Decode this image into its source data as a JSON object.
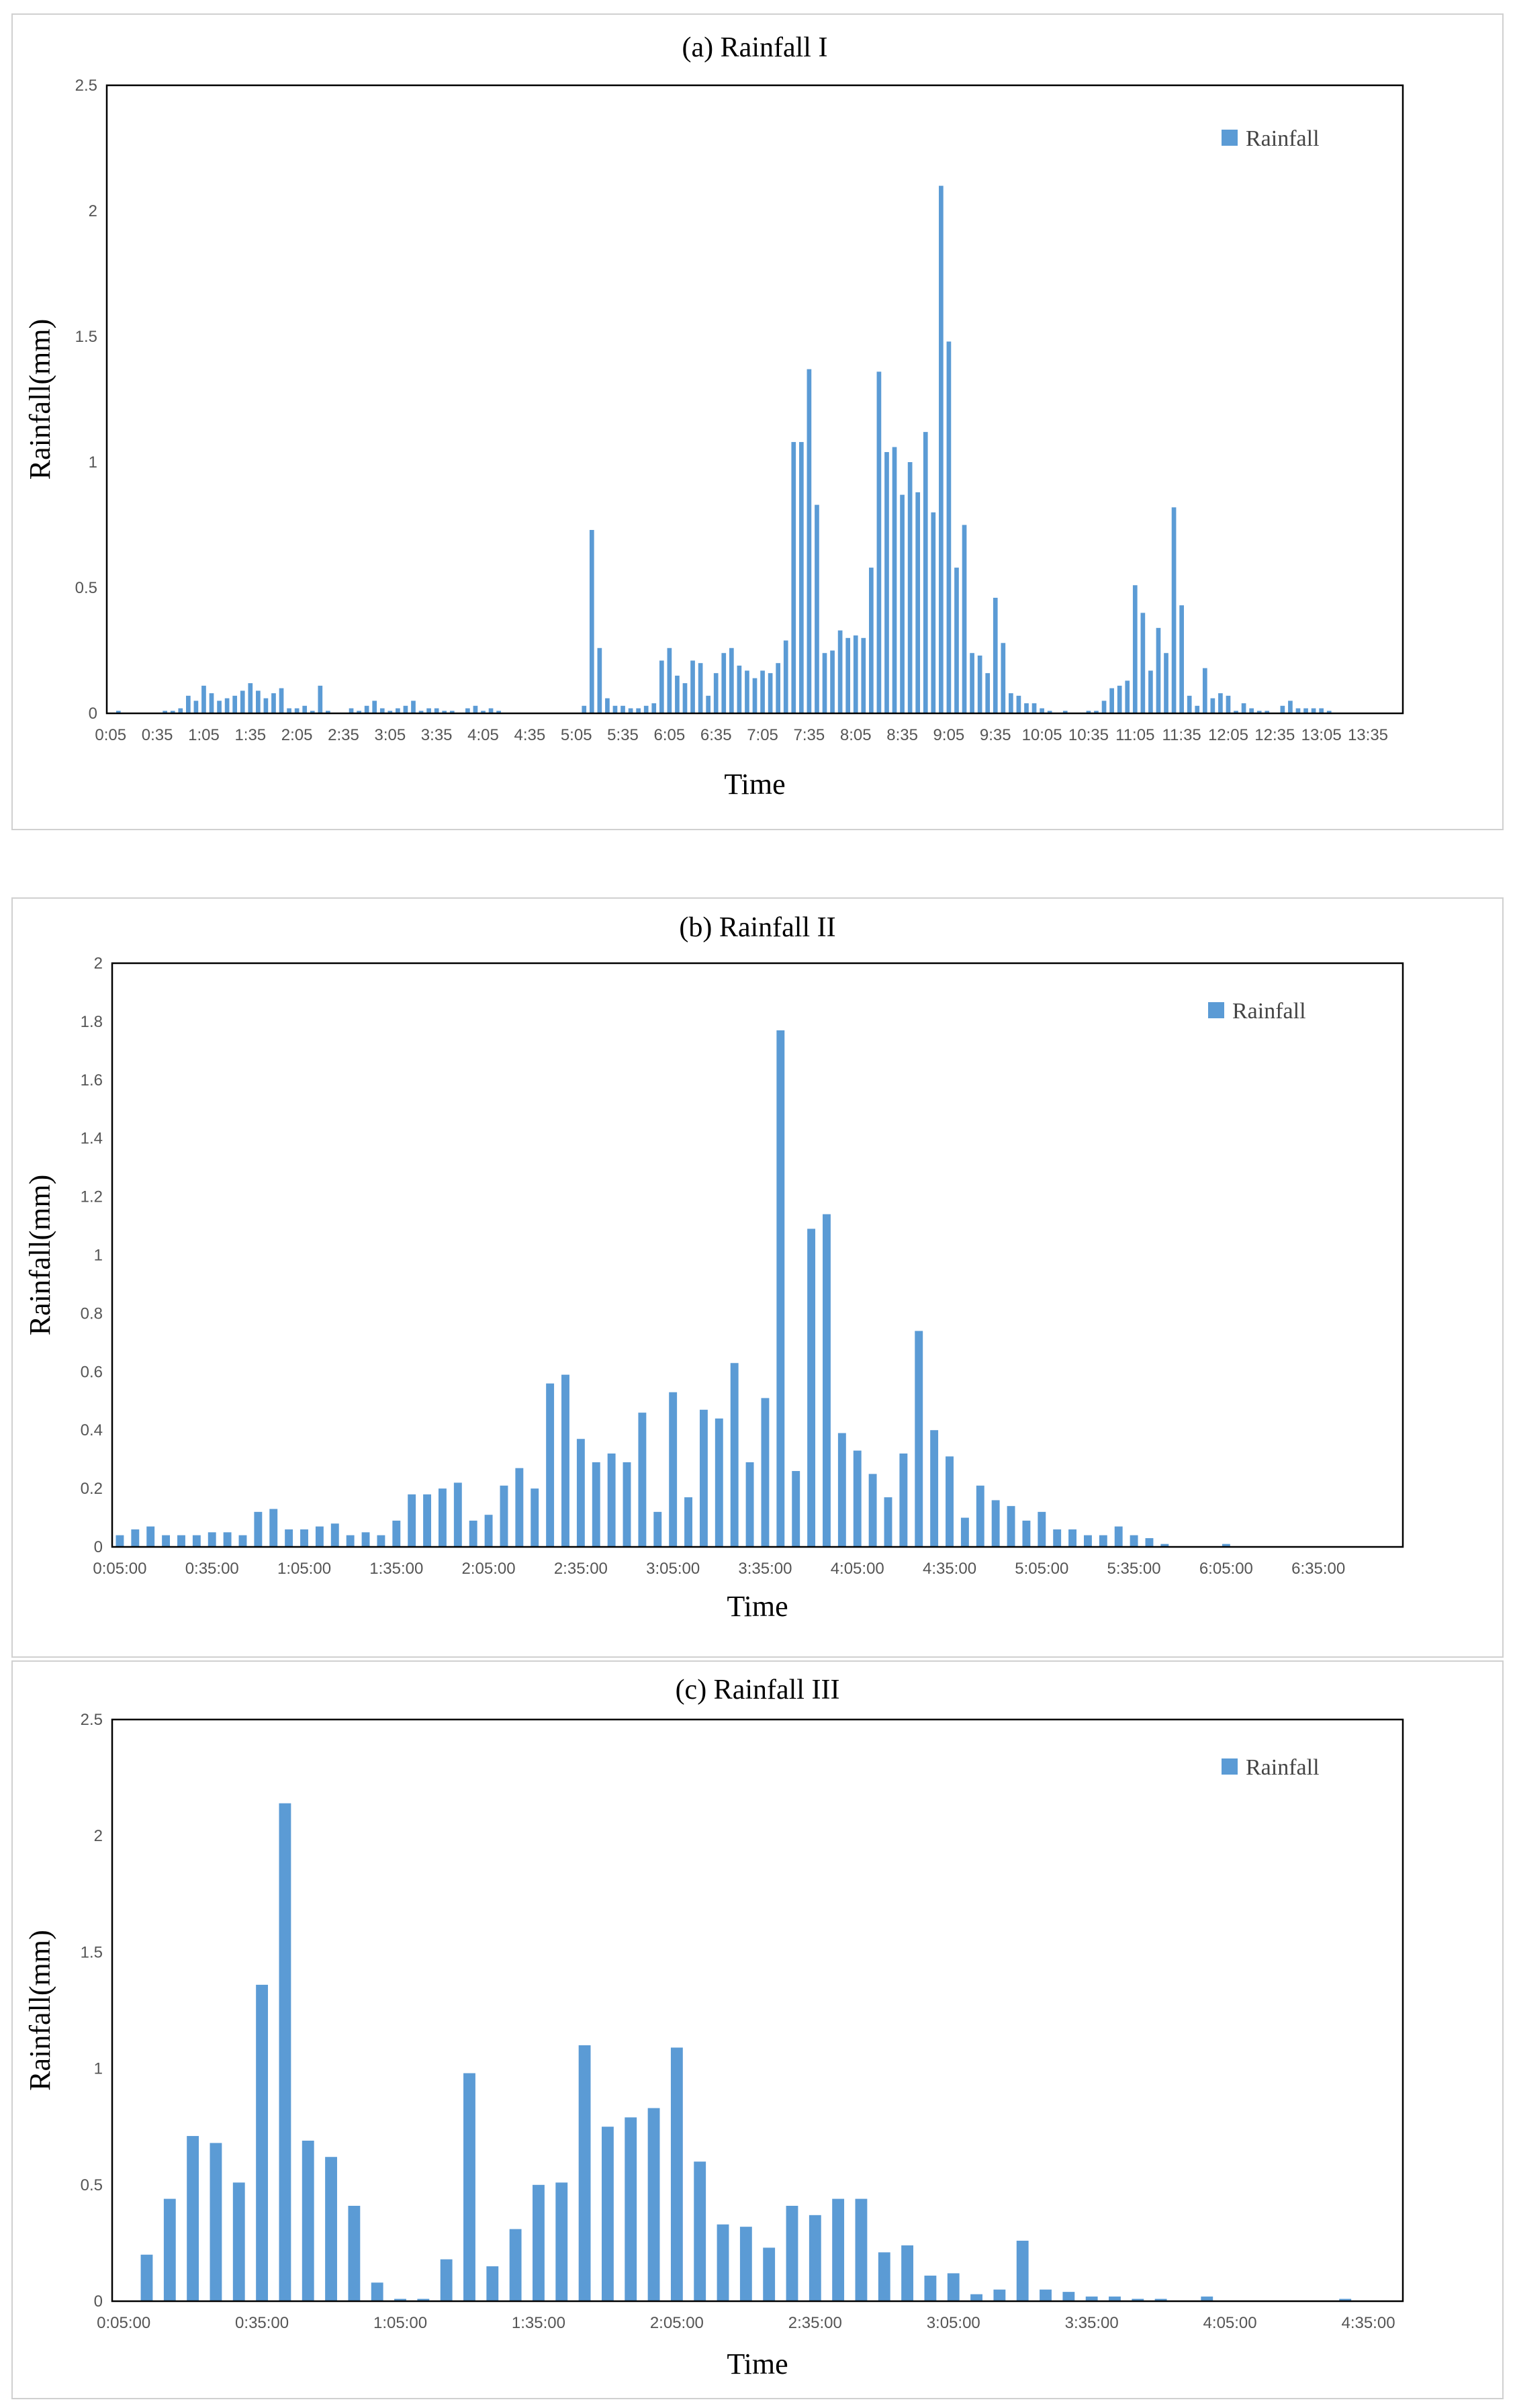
{
  "chart_data": [
    {
      "type": "bar",
      "title": "(a) Rainfall I",
      "xlabel": "Time",
      "ylabel": "Rainfall(mm)",
      "ylim": [
        0,
        2.5
      ],
      "yticks": [
        "0",
        "0.5",
        "1",
        "1.5",
        "2",
        "2.5"
      ],
      "legend": "Rainfall",
      "legend_position": "top-right",
      "bar_color": "#5b9bd5",
      "xtick_labels": [
        "0:05",
        "0:35",
        "1:05",
        "1:35",
        "2:05",
        "2:35",
        "3:05",
        "3:35",
        "4:05",
        "4:35",
        "5:05",
        "5:35",
        "6:05",
        "6:35",
        "7:05",
        "7:35",
        "8:05",
        "8:35",
        "9:05",
        "9:35",
        "10:05",
        "10:35",
        "11:05",
        "11:35",
        "12:05",
        "12:35",
        "13:05",
        "13:35"
      ],
      "xtick_step": 6,
      "values": [
        0,
        0.01,
        0,
        0,
        0,
        0,
        0,
        0.01,
        0.01,
        0.02,
        0.07,
        0.05,
        0.11,
        0.08,
        0.05,
        0.06,
        0.07,
        0.09,
        0.12,
        0.09,
        0.06,
        0.08,
        0.1,
        0.02,
        0.02,
        0.03,
        0.01,
        0.11,
        0.01,
        0,
        0,
        0.02,
        0.01,
        0.03,
        0.05,
        0.02,
        0.01,
        0.02,
        0.03,
        0.05,
        0.01,
        0.02,
        0.02,
        0.01,
        0.01,
        0,
        0.02,
        0.03,
        0.01,
        0.02,
        0.01,
        0,
        0,
        0,
        0,
        0,
        0,
        0,
        0,
        0,
        0,
        0.03,
        0.73,
        0.26,
        0.06,
        0.03,
        0.03,
        0.02,
        0.02,
        0.03,
        0.04,
        0.21,
        0.26,
        0.15,
        0.12,
        0.21,
        0.2,
        0.07,
        0.16,
        0.24,
        0.26,
        0.19,
        0.17,
        0.14,
        0.17,
        0.16,
        0.2,
        0.29,
        1.08,
        1.08,
        1.37,
        0.83,
        0.24,
        0.25,
        0.33,
        0.3,
        0.31,
        0.3,
        0.58,
        1.36,
        1.04,
        1.06,
        0.87,
        1,
        0.88,
        1.12,
        0.8,
        2.1,
        1.48,
        0.58,
        0.75,
        0.24,
        0.23,
        0.16,
        0.46,
        0.28,
        0.08,
        0.07,
        0.04,
        0.04,
        0.02,
        0.01,
        0,
        0.01,
        0,
        0,
        0.01,
        0.01,
        0.05,
        0.1,
        0.11,
        0.13,
        0.51,
        0.4,
        0.17,
        0.34,
        0.24,
        0.82,
        0.43,
        0.07,
        0.03,
        0.18,
        0.06,
        0.08,
        0.07,
        0.01,
        0.04,
        0.02,
        0.01,
        0.01,
        0,
        0.03,
        0.05,
        0.02,
        0.02,
        0.02,
        0.02,
        0.01,
        0,
        0,
        0,
        0,
        0,
        0,
        0,
        0,
        0
      ]
    },
    {
      "type": "bar",
      "title": "(b) Rainfall II",
      "xlabel": "Time",
      "ylabel": "Rainfall(mm)",
      "ylim": [
        0,
        2
      ],
      "yticks": [
        "0",
        "0.2",
        "0.4",
        "0.6",
        "0.8",
        "1",
        "1.2",
        "1.4",
        "1.6",
        "1.8",
        "2"
      ],
      "legend": "Rainfall",
      "legend_position": "top-right",
      "bar_color": "#5b9bd5",
      "xtick_labels": [
        "0:05:00",
        "0:35:00",
        "1:05:00",
        "1:35:00",
        "2:05:00",
        "2:35:00",
        "3:05:00",
        "3:35:00",
        "4:05:00",
        "4:35:00",
        "5:05:00",
        "5:35:00",
        "6:05:00",
        "6:35:00"
      ],
      "xtick_step": 6,
      "values": [
        0.04,
        0.06,
        0.07,
        0.04,
        0.04,
        0.04,
        0.05,
        0.05,
        0.04,
        0.12,
        0.13,
        0.06,
        0.06,
        0.07,
        0.08,
        0.04,
        0.05,
        0.04,
        0.09,
        0.18,
        0.18,
        0.2,
        0.22,
        0.09,
        0.11,
        0.21,
        0.27,
        0.2,
        0.56,
        0.59,
        0.37,
        0.29,
        0.32,
        0.29,
        0.46,
        0.12,
        0.53,
        0.17,
        0.47,
        0.44,
        0.63,
        0.29,
        0.51,
        1.77,
        0.26,
        1.09,
        1.14,
        0.39,
        0.33,
        0.25,
        0.17,
        0.32,
        0.74,
        0.4,
        0.31,
        0.1,
        0.21,
        0.16,
        0.14,
        0.09,
        0.12,
        0.06,
        0.06,
        0.04,
        0.04,
        0.07,
        0.04,
        0.03,
        0.01,
        0,
        0,
        0,
        0.01,
        0,
        0,
        0,
        0,
        0,
        0,
        0,
        0,
        0,
        0,
        0
      ]
    },
    {
      "type": "bar",
      "title": "(c) Rainfall III",
      "xlabel": "Time",
      "ylabel": "Rainfall(mm)",
      "ylim": [
        0,
        2.5
      ],
      "yticks": [
        "0",
        "0.5",
        "1",
        "1.5",
        "2",
        "2.5"
      ],
      "legend": "Rainfall",
      "legend_position": "top-right",
      "bar_color": "#5b9bd5",
      "xtick_labels": [
        "0:05:00",
        "0:35:00",
        "1:05:00",
        "1:35:00",
        "2:05:00",
        "2:35:00",
        "3:05:00",
        "3:35:00",
        "4:05:00",
        "4:35:00"
      ],
      "xtick_step": 6,
      "values": [
        0,
        0.2,
        0.44,
        0.71,
        0.68,
        0.51,
        1.36,
        2.14,
        0.69,
        0.62,
        0.41,
        0.08,
        0.01,
        0.01,
        0.18,
        0.98,
        0.15,
        0.31,
        0.5,
        0.51,
        1.1,
        0.75,
        0.79,
        0.83,
        1.09,
        0.6,
        0.33,
        0.32,
        0.23,
        0.41,
        0.37,
        0.44,
        0.44,
        0.21,
        0.24,
        0.11,
        0.12,
        0.03,
        0.05,
        0.26,
        0.05,
        0.04,
        0.02,
        0.02,
        0.01,
        0.01,
        0,
        0.02,
        0,
        0,
        0,
        0,
        0,
        0.01,
        0,
        0
      ]
    }
  ]
}
